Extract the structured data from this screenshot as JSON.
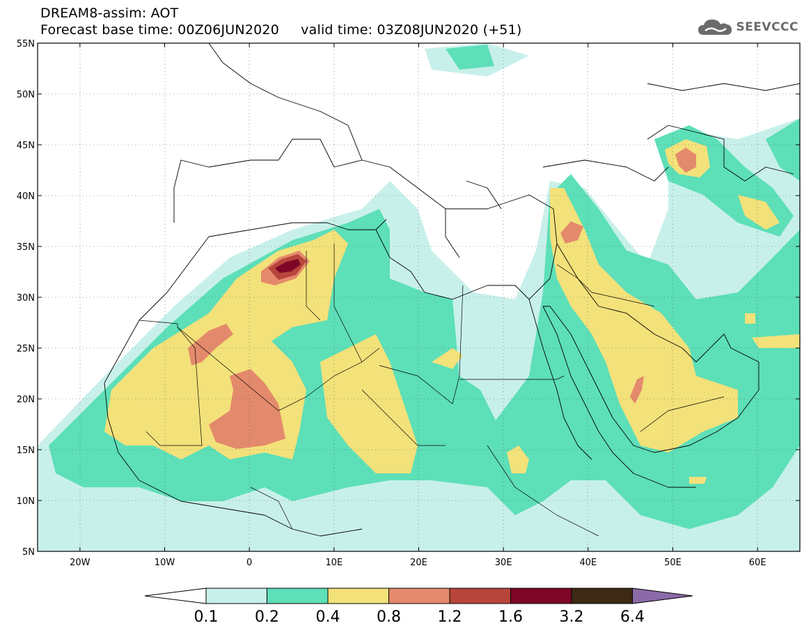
{
  "title": {
    "line1": "DREAM8-assim: AOT",
    "line2": "Forecast base time: 00Z06JUN2020     valid time: 03Z08JUN2020 (+51)"
  },
  "logo": {
    "text": "SEEVCCC",
    "icon": "cloud-icon"
  },
  "map": {
    "lon_range": [
      -25,
      65
    ],
    "lat_range": [
      5,
      55
    ],
    "lat_ticks": [
      "55N",
      "50N",
      "45N",
      "40N",
      "35N",
      "30N",
      "25N",
      "20N",
      "15N",
      "10N",
      "5N"
    ],
    "lon_ticks": [
      "20W",
      "10W",
      "0",
      "10E",
      "20E",
      "30E",
      "40E",
      "50E",
      "60E"
    ],
    "grid": "dotted"
  },
  "colorbar": {
    "labels": [
      "0.1",
      "0.2",
      "0.4",
      "0.8",
      "1.2",
      "1.6",
      "3.2",
      "6.4"
    ],
    "colors": [
      "#c8f0ea",
      "#5ddfb8",
      "#f3e17a",
      "#e48a6c",
      "#b8453c",
      "#7d0626",
      "#3d2914",
      "#8b6aa8"
    ]
  },
  "colors": {
    "lt": "#c8f0ea",
    "tq": "#5ddfb8",
    "yl": "#f3e17a",
    "or": "#e48a6c",
    "rd": "#b8453c",
    "dk": "#7d0626"
  }
}
